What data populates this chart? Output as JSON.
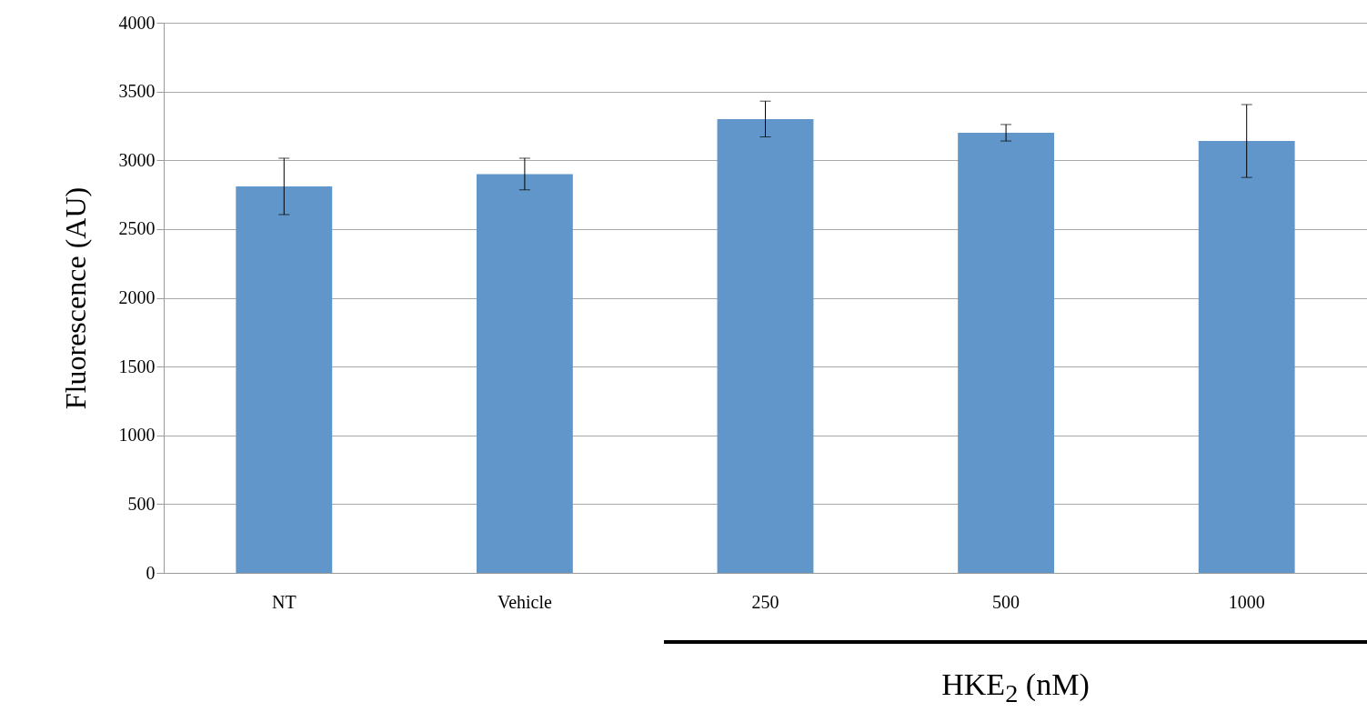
{
  "chart_data": {
    "type": "bar",
    "ylabel": "Fluorescence (AU)",
    "xlabel": "HKE$_{2}$ (nM)",
    "categories": [
      "NT",
      "Vehicle",
      "250",
      "500",
      "1000"
    ],
    "values": [
      2810,
      2900,
      3300,
      3200,
      3140
    ],
    "errors": [
      205,
      115,
      130,
      60,
      265
    ],
    "color": "#6096c9",
    "ylim": [
      0,
      4000
    ],
    "yticks": [
      0,
      500,
      1000,
      1500,
      2000,
      2500,
      3000,
      3500,
      4000
    ],
    "grid": "y"
  }
}
